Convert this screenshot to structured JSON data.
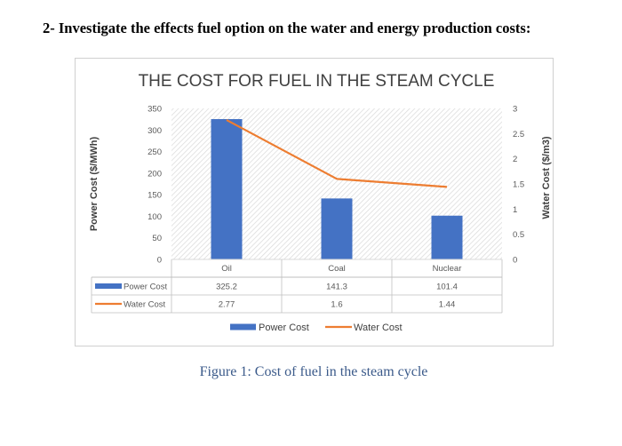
{
  "page": {
    "heading": "2- Investigate the effects fuel option on the water and energy production costs:",
    "caption": "Figure 1: Cost of fuel in the steam cycle"
  },
  "chart_data": {
    "type": "bar",
    "title": "THE COST FOR FUEL IN THE STEAM CYCLE",
    "categories": [
      "Oil",
      "Coal",
      "Nuclear"
    ],
    "series": [
      {
        "name": "Power Cost",
        "type": "bar",
        "axis": "left",
        "values": [
          325.2,
          141.3,
          101.4
        ],
        "labels": [
          "325.2",
          "141.3",
          "101.4"
        ],
        "color": "#4472c4"
      },
      {
        "name": "Water Cost",
        "type": "line",
        "axis": "right",
        "values": [
          2.77,
          1.6,
          1.44
        ],
        "labels": [
          "2.77",
          "1.6",
          "1.44"
        ],
        "color": "#ed7d31"
      }
    ],
    "ylabel": "Power Cost ($/MWh)",
    "y2label": "Water Cost ($/m3)",
    "ylim": [
      0,
      350
    ],
    "y2lim": [
      0,
      3
    ],
    "yticks": [
      "0",
      "50",
      "100",
      "150",
      "200",
      "250",
      "300",
      "350"
    ],
    "y2ticks": [
      "0",
      "0.5",
      "1",
      "1.5",
      "2",
      "2.5",
      "3"
    ],
    "legend": "bottom",
    "data_table": true,
    "background": "hatched"
  }
}
